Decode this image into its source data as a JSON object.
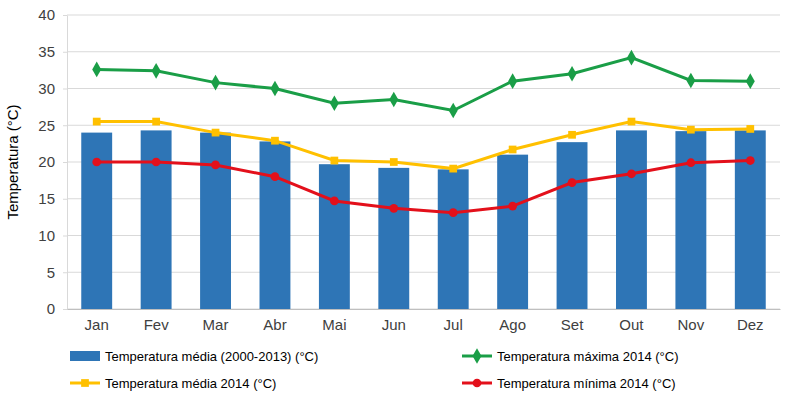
{
  "chart_data": {
    "type": "bar",
    "ylabel": "Temperatura (°C)",
    "categories": [
      "Jan",
      "Fev",
      "Mar",
      "Abr",
      "Mai",
      "Jun",
      "Jul",
      "Ago",
      "Set",
      "Out",
      "Nov",
      "Dez"
    ],
    "series": [
      {
        "name": "Temperatura média (2000-2013) (°C)",
        "type": "bar",
        "color": "#2e75b6",
        "values": [
          24.0,
          24.3,
          24.0,
          22.8,
          19.7,
          19.2,
          19.0,
          21.0,
          22.7,
          24.3,
          24.2,
          24.3
        ]
      },
      {
        "name": "Temperatura máxima 2014 (°C)",
        "type": "line",
        "marker": "diamond",
        "color": "#1a9e47",
        "values": [
          32.6,
          32.4,
          30.8,
          30.0,
          28.0,
          28.5,
          27.0,
          31.0,
          32.0,
          34.2,
          31.1,
          31.0
        ]
      },
      {
        "name": "Temperatura média 2014 (°C)",
        "type": "line",
        "marker": "square",
        "color": "#ffc000",
        "values": [
          25.5,
          25.5,
          24.0,
          22.9,
          20.2,
          20.0,
          19.1,
          21.7,
          23.7,
          25.5,
          24.4,
          24.5
        ]
      },
      {
        "name": "Temperatura mínima 2014 (°C)",
        "type": "line",
        "marker": "circle",
        "color": "#e3101b",
        "values": [
          20.0,
          20.0,
          19.6,
          18.0,
          14.7,
          13.7,
          13.1,
          14.0,
          17.2,
          18.4,
          19.9,
          20.2
        ]
      }
    ],
    "ylim": [
      0,
      40
    ],
    "yticks": [
      0,
      5,
      10,
      15,
      20,
      25,
      30,
      35,
      40
    ],
    "grid": true,
    "legend": "bottom"
  }
}
